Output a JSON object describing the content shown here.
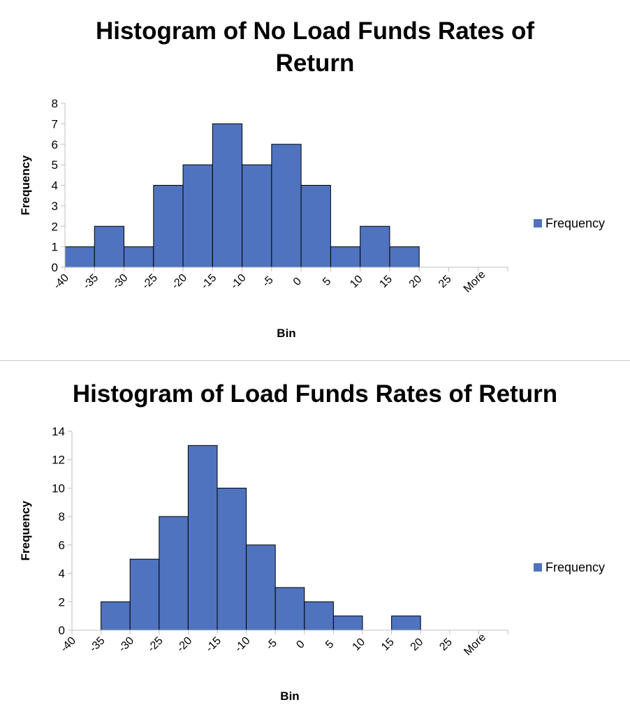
{
  "colors": {
    "bar": "#4f73be",
    "axis": "#bfbfbf",
    "text": "#000000"
  },
  "chart_data": [
    {
      "type": "bar",
      "title": "Histogram of No Load Funds Rates of Return",
      "xlabel": "Bin",
      "ylabel": "Frequency",
      "categories": [
        "-40",
        "-35",
        "-30",
        "-25",
        "-20",
        "-15",
        "-10",
        "-5",
        "0",
        "5",
        "10",
        "15",
        "20",
        "25",
        "More"
      ],
      "series": [
        {
          "name": "Frequency",
          "values": [
            0,
            1,
            2,
            1,
            4,
            5,
            7,
            5,
            6,
            4,
            1,
            2,
            1,
            0,
            0
          ]
        }
      ],
      "ylim": [
        0,
        8
      ],
      "yticks": [
        0,
        1,
        2,
        3,
        4,
        5,
        6,
        7,
        8
      ],
      "grid": false,
      "legend": "right"
    },
    {
      "type": "bar",
      "title": "Histogram of Load Funds Rates of Return",
      "xlabel": "Bin",
      "ylabel": "Frequency",
      "categories": [
        "-40",
        "-35",
        "-30",
        "-25",
        "-20",
        "-15",
        "-10",
        "-5",
        "0",
        "5",
        "10",
        "15",
        "20",
        "25",
        "More"
      ],
      "series": [
        {
          "name": "Frequency",
          "values": [
            0,
            0,
            2,
            5,
            8,
            13,
            10,
            6,
            3,
            2,
            1,
            0,
            1,
            0,
            0
          ]
        }
      ],
      "ylim": [
        0,
        14
      ],
      "yticks": [
        0,
        2,
        4,
        6,
        8,
        10,
        12,
        14
      ],
      "grid": false,
      "legend": "right"
    }
  ]
}
